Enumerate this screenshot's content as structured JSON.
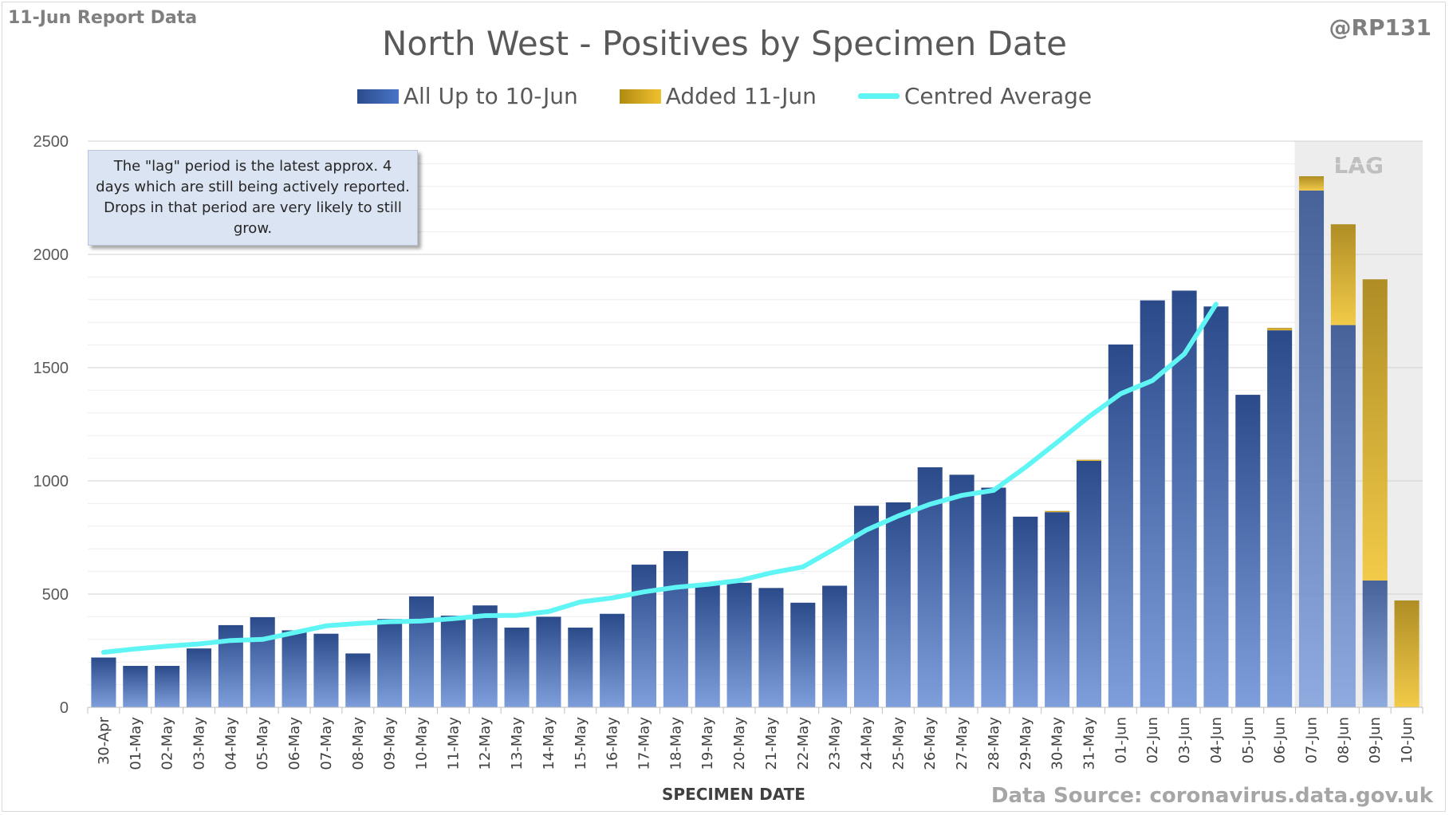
{
  "header": {
    "report_label": "11-Jun Report Data",
    "handle": "@RP131",
    "source": "Data Source: coronavirus.data.gov.uk"
  },
  "note": {
    "text": "The \"lag\" period is the latest approx. 4 days which are still being actively reported.  Drops in that period are very likely to still grow."
  },
  "colors": {
    "all_up_to": "#3a62b0",
    "added": "#e6b21f",
    "average_line": "#5ff5f5",
    "lag_shade": "#ededed"
  },
  "chart_data": {
    "type": "bar",
    "title": "North West - Positives by Specimen Date",
    "xlabel": "SPECIMEN DATE",
    "ylabel": "",
    "ylim": [
      0,
      2500
    ],
    "yticks": [
      0,
      500,
      1000,
      1500,
      2000,
      2500
    ],
    "stacked": true,
    "legend_position": "top",
    "lag": {
      "label": "LAG",
      "start_category": "07-Jun",
      "end_category": "10-Jun"
    },
    "categories": [
      "30-Apr",
      "01-May",
      "02-May",
      "03-May",
      "04-May",
      "05-May",
      "06-May",
      "07-May",
      "08-May",
      "09-May",
      "10-May",
      "11-May",
      "12-May",
      "13-May",
      "14-May",
      "15-May",
      "16-May",
      "17-May",
      "18-May",
      "19-May",
      "20-May",
      "21-May",
      "22-May",
      "23-May",
      "24-May",
      "25-May",
      "26-May",
      "27-May",
      "28-May",
      "29-May",
      "30-May",
      "31-May",
      "01-Jun",
      "02-Jun",
      "03-Jun",
      "04-Jun",
      "05-Jun",
      "06-Jun",
      "07-Jun",
      "08-Jun",
      "09-Jun",
      "10-Jun"
    ],
    "series": [
      {
        "name": "All Up to 10-Jun",
        "type": "bar",
        "values": [
          220,
          183,
          183,
          260,
          363,
          398,
          340,
          325,
          238,
          390,
          490,
          405,
          450,
          352,
          400,
          352,
          413,
          630,
          690,
          545,
          550,
          527,
          462,
          537,
          890,
          905,
          1060,
          1027,
          970,
          842,
          862,
          1088,
          1602,
          1797,
          1840,
          1770,
          1380,
          1665,
          2282,
          1688,
          560,
          0
        ]
      },
      {
        "name": "Added 11-Jun",
        "type": "bar",
        "values": [
          0,
          0,
          0,
          0,
          0,
          0,
          0,
          0,
          0,
          0,
          0,
          0,
          0,
          0,
          0,
          0,
          0,
          0,
          0,
          0,
          0,
          0,
          0,
          0,
          0,
          0,
          0,
          0,
          0,
          0,
          5,
          5,
          0,
          0,
          0,
          0,
          0,
          10,
          63,
          445,
          1330,
          472
        ]
      },
      {
        "name": "Centred Average",
        "type": "line",
        "values": [
          243,
          258,
          270,
          280,
          295,
          300,
          330,
          360,
          370,
          378,
          381,
          392,
          405,
          406,
          423,
          465,
          483,
          510,
          530,
          543,
          560,
          594,
          620,
          700,
          783,
          845,
          897,
          936,
          958,
          1060,
          1170,
          1283,
          1385,
          1443,
          1560,
          1780,
          null,
          null,
          null,
          null,
          null,
          null
        ]
      }
    ]
  }
}
